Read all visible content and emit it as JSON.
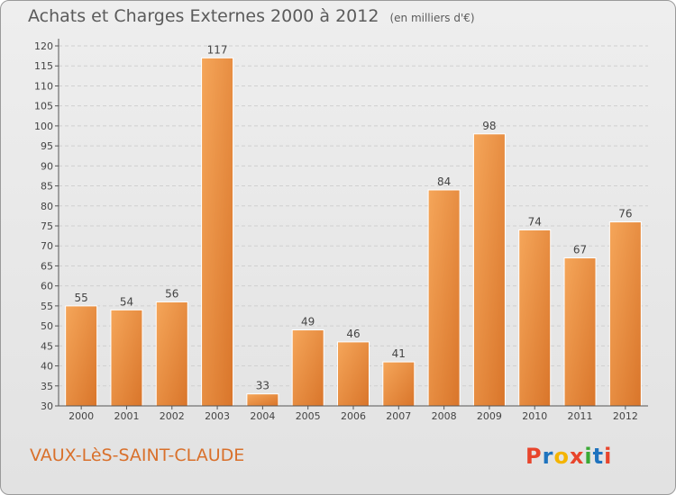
{
  "header": {
    "title": "Achats et Charges Externes 2000 à 2012",
    "unit": "(en milliers d'€)"
  },
  "footer": {
    "commune": "VAUX-LèS-SAINT-CLAUDE",
    "logo": [
      "P",
      "r",
      "o",
      "x",
      "i",
      "t",
      "i"
    ],
    "logo_colors": [
      "#e8452c",
      "#1e73be",
      "#f4b400",
      "#e8452c",
      "#3aa935",
      "#1e73be",
      "#e8452c"
    ]
  },
  "colors": {
    "bar_light": "#f5a65a",
    "bar_dark": "#d9752a",
    "grid": "#d0d0d0",
    "axis": "#555555"
  },
  "chart_data": {
    "type": "bar",
    "title": "Achats et Charges Externes 2000 à 2012",
    "subtitle": "(en milliers d'€)",
    "categories": [
      "2000",
      "2001",
      "2002",
      "2003",
      "2004",
      "2005",
      "2006",
      "2007",
      "2008",
      "2009",
      "2010",
      "2011",
      "2012"
    ],
    "values": [
      55,
      54,
      56,
      117,
      33,
      49,
      46,
      41,
      84,
      98,
      74,
      67,
      76
    ],
    "ylim": [
      30,
      120
    ],
    "yticks": [
      30,
      35,
      40,
      45,
      50,
      55,
      60,
      65,
      70,
      75,
      80,
      85,
      90,
      95,
      100,
      105,
      110,
      115,
      120
    ],
    "grid": true,
    "xlabel": "",
    "ylabel": ""
  }
}
